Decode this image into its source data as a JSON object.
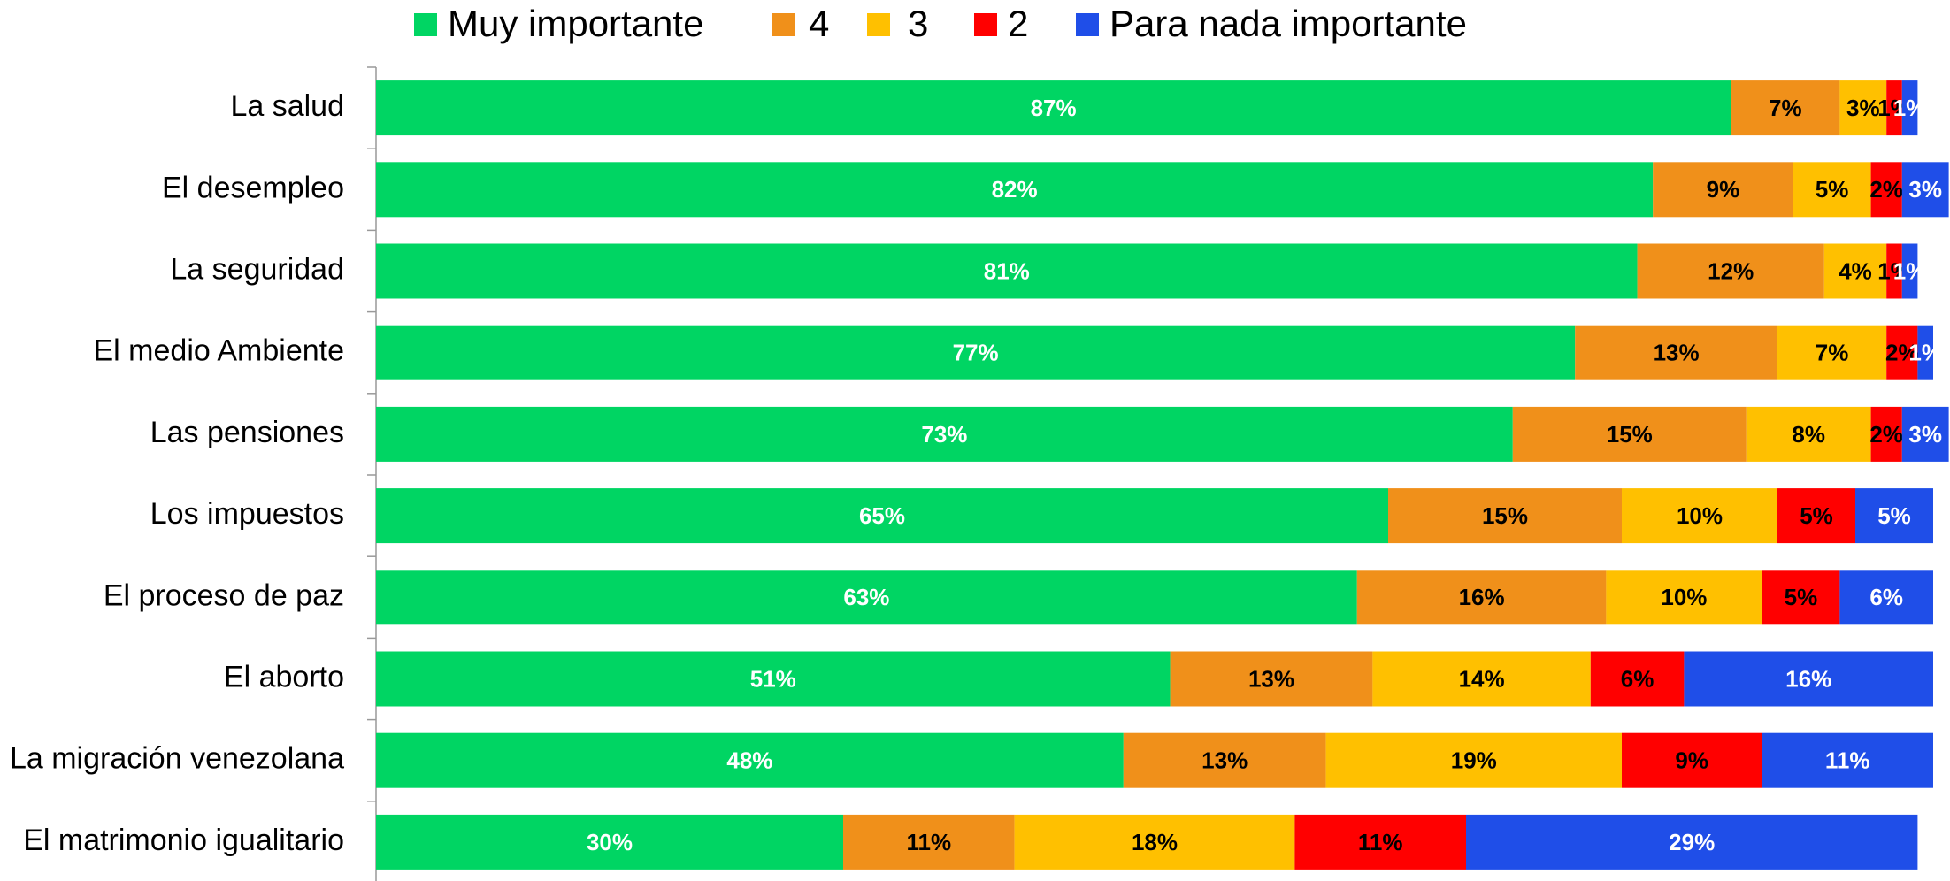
{
  "chart_data": {
    "type": "stacked-barh",
    "categories": [
      "La salud",
      "El desempleo",
      "La seguridad",
      "El medio Ambiente",
      "Las pensiones",
      "Los impuestos",
      "El proceso de paz",
      "El aborto",
      "La migración venezolana",
      "El matrimonio igualitario"
    ],
    "xlim": [
      0,
      100
    ],
    "legend": "top",
    "series": [
      {
        "name": "Muy importante",
        "color": "#00d563",
        "values": [
          87,
          82,
          81,
          77,
          73,
          65,
          63,
          51,
          48,
          30
        ],
        "value_labels": [
          "87%",
          "82%",
          "81%",
          "77%",
          "73%",
          "65%",
          "63%",
          "51%",
          "48%",
          "30%"
        ]
      },
      {
        "name": "4",
        "color": "#f0901a",
        "values": [
          7,
          9,
          12,
          13,
          15,
          15,
          16,
          13,
          13,
          11
        ],
        "value_labels": [
          "7%",
          "9%",
          "12%",
          "13%",
          "15%",
          "15%",
          "16%",
          "13%",
          "13%",
          "11%"
        ]
      },
      {
        "name": "3",
        "color": "#ffc000",
        "values": [
          3,
          5,
          4,
          7,
          8,
          10,
          10,
          14,
          19,
          18
        ],
        "value_labels": [
          "3%",
          "5%",
          "4%",
          "7%",
          "8%",
          "10%",
          "10%",
          "14%",
          "19%",
          "18%"
        ]
      },
      {
        "name": "2",
        "color": "#ff0000",
        "values": [
          1,
          2,
          1,
          2,
          2,
          5,
          5,
          6,
          9,
          11
        ],
        "value_labels": [
          "1%",
          "2%",
          "1%",
          "2%",
          "2%",
          "5%",
          "5%",
          "6%",
          "9%",
          "11%"
        ]
      },
      {
        "name": "Para nada importante",
        "color": "#1f4ee8",
        "values": [
          1,
          3,
          1,
          1,
          3,
          5,
          6,
          16,
          11,
          29
        ],
        "value_labels": [
          "1%",
          "3%",
          "1%",
          "1%",
          "3%",
          "5%",
          "6%",
          "16%",
          "11%",
          "29%"
        ]
      }
    ]
  }
}
